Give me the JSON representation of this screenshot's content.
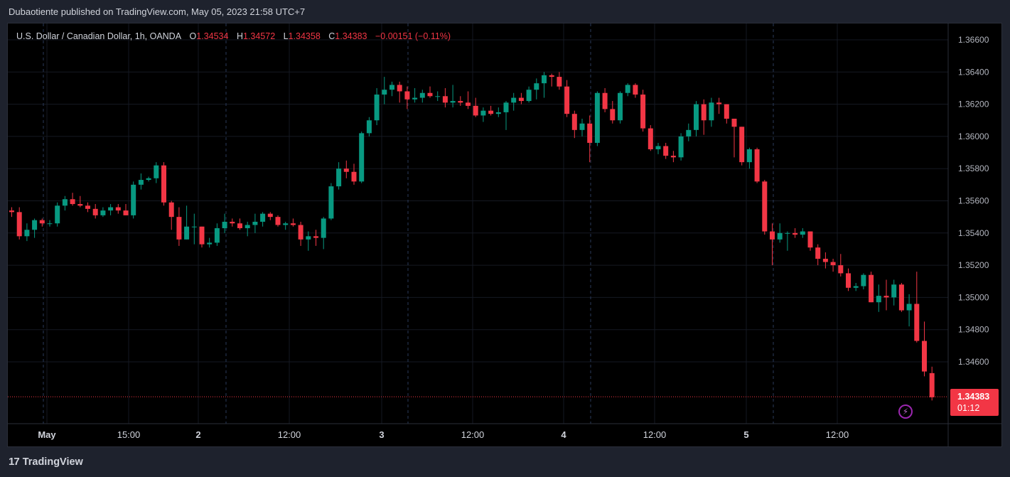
{
  "header": {
    "published_line": "Dubaotiente published on TradingView.com, May 05, 2023 21:58 UTC+7"
  },
  "legend": {
    "symbol": "U.S. Dollar / Canadian Dollar, 1h, OANDA",
    "open_label": "O",
    "open": "1.34534",
    "high_label": "H",
    "high": "1.34572",
    "low_label": "L",
    "low": "1.34358",
    "close_label": "C",
    "close": "1.34383",
    "change": "−0.00151 (−0.11%)"
  },
  "last_price": {
    "price": "1.34383",
    "countdown": "01:12"
  },
  "footer": {
    "brand": "TradingView",
    "logo_glyph": "17"
  },
  "colors": {
    "up": "#089981",
    "down": "#f23645",
    "background": "#000000",
    "grid": "#151922",
    "accent_purple": "#9c27b0"
  },
  "icons": {
    "alert": "lightning-bolt-icon",
    "logo": "tradingview-logo-icon"
  },
  "chart_data": {
    "type": "candlestick",
    "title": "U.S. Dollar / Canadian Dollar, 1h, OANDA",
    "ylim": [
      1.343,
      1.367
    ],
    "y_ticks": [
      "1.36600",
      "1.36400",
      "1.36200",
      "1.36000",
      "1.35800",
      "1.35600",
      "1.35400",
      "1.35200",
      "1.35000",
      "1.34800",
      "1.34600"
    ],
    "x_ticks": [
      "May",
      "15:00",
      "2",
      "12:00",
      "3",
      "12:00",
      "4",
      "12:00",
      "5",
      "12:00"
    ],
    "grid": true,
    "last_price_line": 1.34383,
    "candles": [
      [
        1.3554,
        1.3556,
        1.355,
        1.3553
      ],
      [
        1.3553,
        1.3556,
        1.3536,
        1.3538
      ],
      [
        1.3538,
        1.3546,
        1.3535,
        1.3542
      ],
      [
        1.3542,
        1.3549,
        1.3537,
        1.3548
      ],
      [
        1.3548,
        1.3549,
        1.3544,
        1.3546
      ],
      [
        1.3546,
        1.3548,
        1.3544,
        1.3546
      ],
      [
        1.3546,
        1.3559,
        1.3544,
        1.3557
      ],
      [
        1.3557,
        1.3563,
        1.3554,
        1.3561
      ],
      [
        1.3561,
        1.3565,
        1.3557,
        1.3558
      ],
      [
        1.3558,
        1.3563,
        1.3556,
        1.3557
      ],
      [
        1.3557,
        1.3559,
        1.3553,
        1.3555
      ],
      [
        1.3555,
        1.3558,
        1.3549,
        1.3551
      ],
      [
        1.3551,
        1.3556,
        1.355,
        1.3554
      ],
      [
        1.3554,
        1.3558,
        1.3551,
        1.3556
      ],
      [
        1.3556,
        1.3558,
        1.3552,
        1.3554
      ],
      [
        1.3554,
        1.3558,
        1.3551,
        1.3551
      ],
      [
        1.3551,
        1.3572,
        1.3549,
        1.357
      ],
      [
        1.357,
        1.3577,
        1.3567,
        1.3573
      ],
      [
        1.3573,
        1.3575,
        1.3572,
        1.3574
      ],
      [
        1.3574,
        1.3584,
        1.3571,
        1.3582
      ],
      [
        1.3582,
        1.3584,
        1.3557,
        1.3559
      ],
      [
        1.3559,
        1.356,
        1.3542,
        1.355
      ],
      [
        1.355,
        1.3556,
        1.3532,
        1.3536
      ],
      [
        1.3536,
        1.3557,
        1.3536,
        1.3544
      ],
      [
        1.3544,
        1.3552,
        1.3533,
        1.3544
      ],
      [
        1.3544,
        1.3544,
        1.3531,
        1.3533
      ],
      [
        1.3533,
        1.3537,
        1.3531,
        1.3534
      ],
      [
        1.3534,
        1.3546,
        1.3532,
        1.3543
      ],
      [
        1.3543,
        1.3552,
        1.354,
        1.3547
      ],
      [
        1.3547,
        1.3549,
        1.3544,
        1.3546
      ],
      [
        1.3546,
        1.3549,
        1.3542,
        1.3543
      ],
      [
        1.3543,
        1.3547,
        1.3538,
        1.3545
      ],
      [
        1.3545,
        1.3552,
        1.354,
        1.3547
      ],
      [
        1.3547,
        1.3553,
        1.3544,
        1.3552
      ],
      [
        1.3552,
        1.3553,
        1.3548,
        1.355
      ],
      [
        1.355,
        1.3551,
        1.3544,
        1.3545
      ],
      [
        1.3545,
        1.3547,
        1.3542,
        1.3546
      ],
      [
        1.3546,
        1.3549,
        1.3544,
        1.3545
      ],
      [
        1.3545,
        1.3547,
        1.3532,
        1.3536
      ],
      [
        1.3536,
        1.3541,
        1.3529,
        1.3538
      ],
      [
        1.3538,
        1.3542,
        1.3532,
        1.3537
      ],
      [
        1.3537,
        1.355,
        1.353,
        1.3549
      ],
      [
        1.3549,
        1.3571,
        1.3548,
        1.3569
      ],
      [
        1.3569,
        1.3584,
        1.3567,
        1.358
      ],
      [
        1.358,
        1.3585,
        1.3574,
        1.3578
      ],
      [
        1.3578,
        1.3583,
        1.357,
        1.3572
      ],
      [
        1.3572,
        1.3603,
        1.3571,
        1.3602
      ],
      [
        1.3602,
        1.3612,
        1.36,
        1.361
      ],
      [
        1.361,
        1.363,
        1.3607,
        1.3626
      ],
      [
        1.3626,
        1.3637,
        1.362,
        1.3629
      ],
      [
        1.3629,
        1.3634,
        1.3625,
        1.3632
      ],
      [
        1.3632,
        1.3634,
        1.3621,
        1.3628
      ],
      [
        1.3628,
        1.3631,
        1.3617,
        1.3623
      ],
      [
        1.3623,
        1.363,
        1.3621,
        1.3624
      ],
      [
        1.3624,
        1.3629,
        1.3621,
        1.3627
      ],
      [
        1.3627,
        1.3631,
        1.3624,
        1.3625
      ],
      [
        1.3625,
        1.3628,
        1.3622,
        1.3625
      ],
      [
        1.3625,
        1.363,
        1.3618,
        1.3621
      ],
      [
        1.3621,
        1.3632,
        1.3618,
        1.3622
      ],
      [
        1.3622,
        1.3625,
        1.3619,
        1.3621
      ],
      [
        1.3621,
        1.3628,
        1.3617,
        1.3619
      ],
      [
        1.3619,
        1.3624,
        1.3612,
        1.3613
      ],
      [
        1.3613,
        1.3618,
        1.3609,
        1.3616
      ],
      [
        1.3616,
        1.3619,
        1.3613,
        1.3614
      ],
      [
        1.3614,
        1.3618,
        1.3612,
        1.3615
      ],
      [
        1.3615,
        1.3622,
        1.3604,
        1.3621
      ],
      [
        1.3621,
        1.3627,
        1.3616,
        1.3624
      ],
      [
        1.3624,
        1.3627,
        1.362,
        1.3622
      ],
      [
        1.3622,
        1.3631,
        1.3621,
        1.3629
      ],
      [
        1.3629,
        1.3636,
        1.3623,
        1.3633
      ],
      [
        1.3633,
        1.364,
        1.3624,
        1.3638
      ],
      [
        1.3638,
        1.3639,
        1.3631,
        1.3637
      ],
      [
        1.3637,
        1.364,
        1.3629,
        1.3631
      ],
      [
        1.3631,
        1.3635,
        1.3612,
        1.3614
      ],
      [
        1.3614,
        1.3616,
        1.3599,
        1.3604
      ],
      [
        1.3604,
        1.3611,
        1.36,
        1.3608
      ],
      [
        1.3608,
        1.3613,
        1.3584,
        1.3596
      ],
      [
        1.3596,
        1.3628,
        1.3594,
        1.3627
      ],
      [
        1.3627,
        1.363,
        1.3615,
        1.3617
      ],
      [
        1.3617,
        1.3622,
        1.3608,
        1.361
      ],
      [
        1.361,
        1.3628,
        1.3608,
        1.3627
      ],
      [
        1.3627,
        1.3633,
        1.3625,
        1.3632
      ],
      [
        1.3632,
        1.3633,
        1.3624,
        1.3626
      ],
      [
        1.3626,
        1.3629,
        1.3603,
        1.3605
      ],
      [
        1.3605,
        1.3607,
        1.3591,
        1.3592
      ],
      [
        1.3592,
        1.3596,
        1.3589,
        1.3594
      ],
      [
        1.3594,
        1.3596,
        1.3586,
        1.3588
      ],
      [
        1.3588,
        1.3591,
        1.3584,
        1.3587
      ],
      [
        1.3587,
        1.3602,
        1.3585,
        1.36
      ],
      [
        1.36,
        1.3608,
        1.3597,
        1.3604
      ],
      [
        1.3604,
        1.3622,
        1.36,
        1.362
      ],
      [
        1.362,
        1.3623,
        1.3601,
        1.361
      ],
      [
        1.361,
        1.3624,
        1.3606,
        1.3621
      ],
      [
        1.3621,
        1.3624,
        1.3614,
        1.362
      ],
      [
        1.362,
        1.362,
        1.3608,
        1.3611
      ],
      [
        1.3611,
        1.361,
        1.3587,
        1.3606
      ],
      [
        1.3606,
        1.3606,
        1.3582,
        1.3584
      ],
      [
        1.3584,
        1.3593,
        1.358,
        1.3592
      ],
      [
        1.3592,
        1.3593,
        1.3571,
        1.3572
      ],
      [
        1.3572,
        1.3573,
        1.3539,
        1.3541
      ],
      [
        1.3541,
        1.3546,
        1.352,
        1.3536
      ],
      [
        1.3536,
        1.3546,
        1.3534,
        1.354
      ],
      [
        1.354,
        1.3541,
        1.3529,
        1.354
      ],
      [
        1.354,
        1.3543,
        1.3537,
        1.3539
      ],
      [
        1.3539,
        1.3543,
        1.3537,
        1.3541
      ],
      [
        1.3541,
        1.3541,
        1.3529,
        1.3531
      ],
      [
        1.3531,
        1.3533,
        1.352,
        1.3524
      ],
      [
        1.3524,
        1.3528,
        1.3518,
        1.3522
      ],
      [
        1.3522,
        1.3524,
        1.3516,
        1.352
      ],
      [
        1.352,
        1.3527,
        1.3513,
        1.3515
      ],
      [
        1.3515,
        1.3518,
        1.3504,
        1.3506
      ],
      [
        1.3506,
        1.3509,
        1.3504,
        1.3507
      ],
      [
        1.3507,
        1.3515,
        1.3505,
        1.3514
      ],
      [
        1.3514,
        1.3516,
        1.3497,
        1.3497
      ],
      [
        1.3497,
        1.3508,
        1.3491,
        1.3501
      ],
      [
        1.3501,
        1.3511,
        1.3492,
        1.35
      ],
      [
        1.35,
        1.3511,
        1.3495,
        1.3508
      ],
      [
        1.3508,
        1.3509,
        1.3491,
        1.3492
      ],
      [
        1.3492,
        1.3502,
        1.3482,
        1.3496
      ],
      [
        1.3496,
        1.3516,
        1.3472,
        1.3473
      ],
      [
        1.3473,
        1.3485,
        1.3451,
        1.3454
      ],
      [
        1.3453,
        1.3457,
        1.3436,
        1.3438
      ]
    ]
  }
}
